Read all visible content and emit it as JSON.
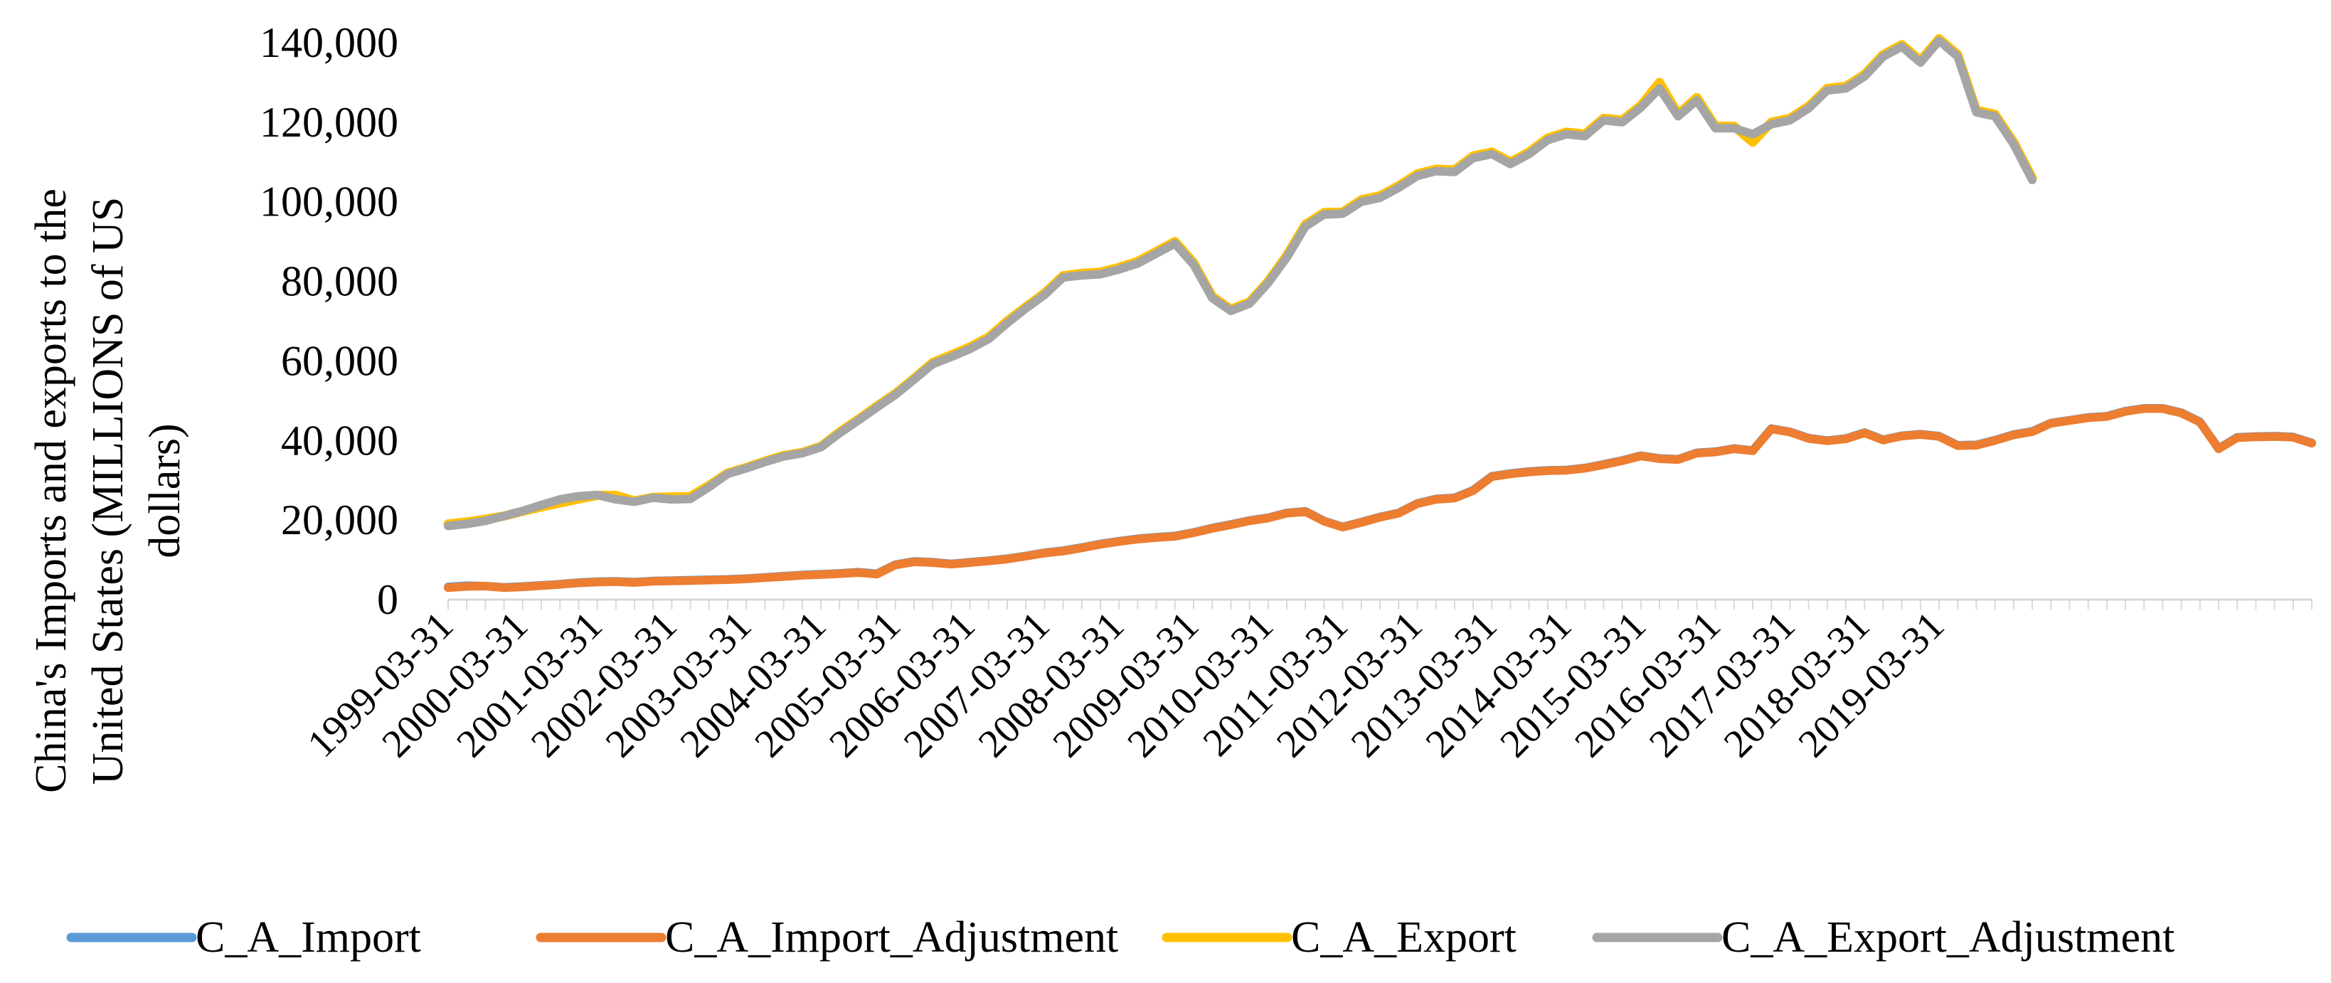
{
  "chart_data": {
    "type": "line",
    "title": "",
    "xlabel": "",
    "ylabel_lines": [
      "China's Imports and exports to the",
      "United States (MILLIONS of US",
      "dollars)"
    ],
    "ylim": [
      0,
      140000
    ],
    "yticks": [
      0,
      20000,
      40000,
      60000,
      80000,
      100000,
      120000,
      140000
    ],
    "ytick_labels": [
      "0",
      "20,000",
      "40,000",
      "60,000",
      "80,000",
      "100,000",
      "120,000",
      "140,000"
    ],
    "xtick_labels": [
      "1999-03-31",
      "2000-03-31",
      "2001-03-31",
      "2002-03-31",
      "2003-03-31",
      "2004-03-31",
      "2005-03-31",
      "2006-03-31",
      "2007-03-31",
      "2008-03-31",
      "2009-03-31",
      "2010-03-31",
      "2011-03-31",
      "2012-03-31",
      "2013-03-31",
      "2014-03-31",
      "2015-03-31",
      "2016-03-31",
      "2017-03-31",
      "2018-03-31",
      "2019-03-31"
    ],
    "quarters_start": "1999-Q1",
    "grid": false,
    "legend_position": "bottom",
    "series": [
      {
        "name": "C_A_Import",
        "color": "#5B9BD5",
        "values": [
          3200,
          3500,
          3400,
          3100,
          3300,
          3600,
          3900,
          4300,
          4500,
          4600,
          4400,
          4700,
          4800,
          4900,
          5000,
          5100,
          5300,
          5600,
          5900,
          6200,
          6400,
          6600,
          6900,
          6500,
          8800,
          9600,
          9400,
          9000,
          9400,
          9800,
          10300,
          11000,
          11800,
          12300,
          13100,
          14000,
          14700,
          15300,
          15700,
          16000,
          16900,
          18000,
          18900,
          19900,
          20600,
          21800,
          22200,
          19800,
          18300,
          19500,
          20800,
          21800,
          24200,
          25300,
          25600,
          27500,
          31000,
          31700,
          32200,
          32500,
          32600,
          33100,
          34000,
          35000,
          36200,
          35500,
          35300,
          36900,
          37200,
          38000,
          37500,
          43000,
          42200,
          40600,
          40000,
          40500,
          42000,
          40200,
          41200,
          41600,
          41100,
          38800,
          38900,
          40100,
          41500,
          42300,
          44400,
          45100,
          45800,
          46100,
          47400,
          48100,
          48100,
          47000,
          44700,
          38000,
          40800,
          41000,
          41100,
          40900,
          39400
        ]
      },
      {
        "name": "C_A_Import_Adjustment",
        "color": "#ED7D31",
        "values": [
          3000,
          3300,
          3400,
          3000,
          3200,
          3500,
          3800,
          4200,
          4400,
          4500,
          4300,
          4600,
          4700,
          4800,
          4900,
          5000,
          5200,
          5500,
          5800,
          6100,
          6300,
          6500,
          6800,
          6400,
          8700,
          9500,
          9300,
          8900,
          9300,
          9700,
          10200,
          10900,
          11700,
          12200,
          13000,
          13900,
          14600,
          15200,
          15600,
          15900,
          16800,
          17900,
          18800,
          19800,
          20500,
          21700,
          22100,
          19700,
          18200,
          19400,
          20700,
          21700,
          24100,
          25200,
          25500,
          27400,
          30900,
          31600,
          32100,
          32400,
          32500,
          33000,
          33900,
          34900,
          36100,
          35400,
          35200,
          36800,
          37100,
          37900,
          37400,
          42900,
          42100,
          40500,
          39900,
          40400,
          41900,
          40100,
          41100,
          41500,
          41000,
          38700,
          38800,
          40000,
          41400,
          42200,
          44300,
          45000,
          45700,
          46000,
          47300,
          48000,
          48000,
          46900,
          44600,
          37900,
          40700,
          40900,
          41000,
          40800,
          39300
        ]
      },
      {
        "name": "C_A_Export",
        "color": "#FFC000",
        "values": [
          19000,
          19500,
          20200,
          21000,
          22200,
          23300,
          24300,
          25300,
          26200,
          26200,
          24800,
          25700,
          25800,
          25900,
          28700,
          31800,
          33200,
          34800,
          36200,
          37000,
          38500,
          42100,
          45300,
          48600,
          51800,
          55600,
          59600,
          61500,
          63500,
          66000,
          70000,
          73600,
          77000,
          81400,
          82000,
          82300,
          83500,
          85000,
          87500,
          90000,
          84700,
          76200,
          73000,
          74800,
          80000,
          86500,
          94300,
          97300,
          97400,
          100500,
          101500,
          104000,
          107000,
          108200,
          108000,
          111500,
          112500,
          110000,
          112500,
          116000,
          117500,
          117000,
          121000,
          120500,
          124200,
          130000,
          122000,
          126200,
          119000,
          119000,
          115000,
          120000,
          121000,
          124000,
          128500,
          129000,
          132000,
          137000,
          139500,
          135500,
          141000,
          137000,
          123000,
          122000,
          115000,
          106000
        ]
      },
      {
        "name": "C_A_Export_Adjustment",
        "color": "#A5A5A5",
        "values": [
          18500,
          19000,
          19800,
          21000,
          22300,
          23800,
          25200,
          26000,
          26300,
          25200,
          24600,
          25600,
          25200,
          25300,
          28300,
          31600,
          33000,
          34600,
          36000,
          36800,
          38300,
          41800,
          45000,
          48300,
          51500,
          55300,
          59200,
          61000,
          63000,
          65500,
          69500,
          73200,
          76600,
          81000,
          81500,
          81800,
          83000,
          84500,
          87000,
          89500,
          84200,
          75800,
          72600,
          74400,
          79600,
          86000,
          93800,
          96800,
          97000,
          100000,
          101000,
          103500,
          106500,
          107700,
          107500,
          111000,
          112000,
          109500,
          112000,
          115500,
          117000,
          116500,
          120500,
          120000,
          123700,
          128500,
          121500,
          125500,
          118500,
          118500,
          117000,
          119500,
          120500,
          123500,
          128000,
          128500,
          131500,
          136500,
          139000,
          135000,
          140500,
          136500,
          122500,
          121500,
          114500,
          105500
        ]
      }
    ]
  }
}
